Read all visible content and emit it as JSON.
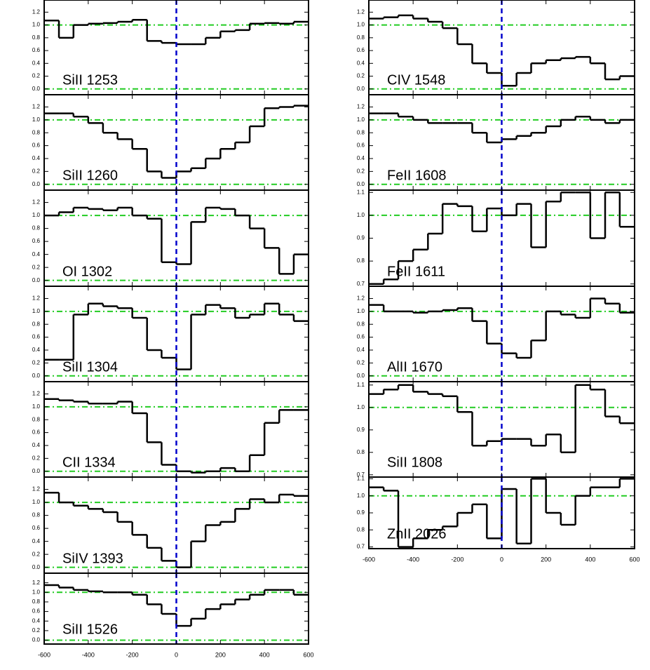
{
  "chart_data": [
    {
      "type": "line",
      "drawstyle": "steps-post",
      "title": "SiII 1253",
      "x": [
        -600,
        -533,
        -467,
        -400,
        -333,
        -267,
        -200,
        -133,
        -67,
        0,
        67,
        133,
        200,
        267,
        333,
        400,
        467,
        533
      ],
      "values": [
        1.07,
        0.8,
        1.0,
        1.02,
        1.03,
        1.05,
        1.08,
        0.75,
        0.72,
        0.7,
        0.7,
        0.8,
        0.9,
        0.92,
        1.02,
        1.03,
        1.02,
        1.05
      ],
      "color": "#000000",
      "xlim": [
        -600,
        600
      ],
      "xticks": [
        -600,
        -400,
        -200,
        0,
        200,
        400,
        600
      ],
      "ylim": [
        -0.09,
        1.39
      ],
      "yticks": [
        {
          "value": 0,
          "label": "0.0"
        },
        0.2,
        0.4,
        0.6,
        0.8,
        {
          "value": 1,
          "label": "1.0"
        },
        1.2
      ],
      "hlines": [
        0,
        1
      ],
      "vline": 0
    },
    {
      "type": "line",
      "drawstyle": "steps-post",
      "title": "SiII 1260",
      "x": [
        -600,
        -533,
        -467,
        -400,
        -333,
        -267,
        -200,
        -133,
        -67,
        0,
        67,
        133,
        200,
        267,
        333,
        400,
        467,
        533
      ],
      "values": [
        1.1,
        1.1,
        1.05,
        0.95,
        0.8,
        0.7,
        0.55,
        0.2,
        0.1,
        0.2,
        0.25,
        0.4,
        0.55,
        0.65,
        0.9,
        1.18,
        1.2,
        1.22
      ],
      "color": "#000000",
      "xlim": [
        -600,
        600
      ],
      "xticks": [
        -600,
        -400,
        -200,
        0,
        200,
        400,
        600
      ],
      "ylim": [
        -0.09,
        1.39
      ],
      "yticks": [
        {
          "value": 0,
          "label": "0.0"
        },
        0.2,
        0.4,
        0.6,
        0.8,
        {
          "value": 1,
          "label": "1.0"
        },
        1.2
      ],
      "hlines": [
        0,
        1
      ],
      "vline": 0
    },
    {
      "type": "line",
      "drawstyle": "steps-post",
      "title": "OI 1302",
      "x": [
        -600,
        -533,
        -467,
        -400,
        -333,
        -267,
        -200,
        -133,
        -67,
        0,
        67,
        133,
        200,
        267,
        333,
        400,
        467,
        533
      ],
      "values": [
        1.0,
        1.05,
        1.12,
        1.1,
        1.08,
        1.12,
        1.0,
        0.95,
        0.28,
        0.25,
        0.9,
        1.12,
        1.1,
        1.0,
        0.8,
        0.5,
        0.1,
        0.4
      ],
      "color": "#000000",
      "xlim": [
        -600,
        600
      ],
      "xticks": [
        -600,
        -400,
        -200,
        0,
        200,
        400,
        600
      ],
      "ylim": [
        -0.09,
        1.39
      ],
      "yticks": [
        {
          "value": 0,
          "label": "0.0"
        },
        0.2,
        0.4,
        0.6,
        0.8,
        {
          "value": 1,
          "label": "1.0"
        },
        1.2
      ],
      "hlines": [
        0,
        1
      ],
      "vline": 0
    },
    {
      "type": "line",
      "drawstyle": "steps-post",
      "title": "SiII 1304",
      "x": [
        -600,
        -533,
        -467,
        -400,
        -333,
        -267,
        -200,
        -133,
        -67,
        0,
        67,
        133,
        200,
        267,
        333,
        400,
        467,
        533
      ],
      "values": [
        0.25,
        0.25,
        0.95,
        1.12,
        1.08,
        1.05,
        0.9,
        0.4,
        0.28,
        0.1,
        0.95,
        1.1,
        1.05,
        0.9,
        0.95,
        1.12,
        0.95,
        0.85
      ],
      "color": "#000000",
      "xlim": [
        -600,
        600
      ],
      "xticks": [
        -600,
        -400,
        -200,
        0,
        200,
        400,
        600
      ],
      "ylim": [
        -0.09,
        1.39
      ],
      "yticks": [
        {
          "value": 0,
          "label": "0.0"
        },
        0.2,
        0.4,
        0.6,
        0.8,
        {
          "value": 1,
          "label": "1.0"
        },
        1.2
      ],
      "hlines": [
        0,
        1
      ],
      "vline": 0
    },
    {
      "type": "line",
      "drawstyle": "steps-post",
      "title": "CII 1334",
      "x": [
        -600,
        -533,
        -467,
        -400,
        -333,
        -267,
        -200,
        -133,
        -67,
        0,
        67,
        133,
        200,
        267,
        333,
        400,
        467,
        533
      ],
      "values": [
        1.12,
        1.1,
        1.08,
        1.05,
        1.05,
        1.08,
        0.9,
        0.45,
        0.1,
        0.0,
        -0.02,
        0.0,
        0.05,
        0.0,
        0.25,
        0.75,
        0.95,
        0.95
      ],
      "color": "#000000",
      "xlim": [
        -600,
        600
      ],
      "xticks": [
        -600,
        -400,
        -200,
        0,
        200,
        400,
        600
      ],
      "ylim": [
        -0.09,
        1.39
      ],
      "yticks": [
        {
          "value": 0,
          "label": "0.0"
        },
        0.2,
        0.4,
        0.6,
        0.8,
        {
          "value": 1,
          "label": "1.0"
        },
        1.2
      ],
      "hlines": [
        0,
        1
      ],
      "vline": 0
    },
    {
      "type": "line",
      "drawstyle": "steps-post",
      "title": "SiIV 1393",
      "x": [
        -600,
        -533,
        -467,
        -400,
        -333,
        -267,
        -200,
        -133,
        -67,
        0,
        67,
        133,
        200,
        267,
        333,
        400,
        467,
        533
      ],
      "values": [
        1.15,
        1.0,
        0.95,
        0.9,
        0.85,
        0.7,
        0.5,
        0.3,
        0.1,
        0.0,
        0.4,
        0.65,
        0.7,
        0.9,
        1.05,
        1.0,
        1.12,
        1.1
      ],
      "color": "#000000",
      "xlim": [
        -600,
        600
      ],
      "xticks": [
        -600,
        -400,
        -200,
        0,
        200,
        400,
        600
      ],
      "ylim": [
        -0.09,
        1.39
      ],
      "yticks": [
        {
          "value": 0,
          "label": "0.0"
        },
        0.2,
        0.4,
        0.6,
        0.8,
        {
          "value": 1,
          "label": "1.0"
        },
        1.2
      ],
      "hlines": [
        0,
        1
      ],
      "vline": 0
    },
    {
      "type": "line",
      "drawstyle": "steps-post",
      "title": "SiII 1526",
      "x": [
        -600,
        -533,
        -467,
        -400,
        -333,
        -267,
        -200,
        -133,
        -67,
        0,
        67,
        133,
        200,
        267,
        333,
        400,
        467,
        533
      ],
      "values": [
        1.15,
        1.1,
        1.05,
        1.02,
        1.0,
        1.0,
        0.95,
        0.75,
        0.55,
        0.3,
        0.45,
        0.65,
        0.75,
        0.85,
        0.95,
        1.05,
        1.05,
        0.95
      ],
      "color": "#000000",
      "xlim": [
        -600,
        600
      ],
      "xticks": [
        -600,
        -400,
        -200,
        0,
        200,
        400,
        600
      ],
      "ylim": [
        -0.08,
        1.4
      ],
      "yticks": [
        {
          "value": 0,
          "label": "0.0"
        },
        0.2,
        0.4,
        0.6,
        0.8,
        {
          "value": 1,
          "label": "1.0"
        },
        1.2
      ],
      "hlines": [
        0,
        1
      ],
      "vline": 0
    },
    {
      "type": "line",
      "drawstyle": "steps-post",
      "title": "CIV 1548",
      "x": [
        -600,
        -533,
        -467,
        -400,
        -333,
        -267,
        -200,
        -133,
        -67,
        0,
        67,
        133,
        200,
        267,
        333,
        400,
        467,
        533
      ],
      "values": [
        1.1,
        1.12,
        1.15,
        1.1,
        1.05,
        0.95,
        0.7,
        0.4,
        0.25,
        0.05,
        0.25,
        0.4,
        0.45,
        0.48,
        0.5,
        0.4,
        0.15,
        0.2
      ],
      "color": "#000000",
      "xlim": [
        -600,
        600
      ],
      "xticks": [
        -600,
        -400,
        -200,
        0,
        200,
        400,
        600
      ],
      "ylim": [
        -0.09,
        1.39
      ],
      "yticks": [
        {
          "value": 0,
          "label": "0.0"
        },
        0.2,
        0.4,
        0.6,
        0.8,
        {
          "value": 1,
          "label": "1.0"
        },
        1.2
      ],
      "hlines": [
        0,
        1
      ],
      "vline": 0
    },
    {
      "type": "line",
      "drawstyle": "steps-post",
      "title": "FeII 1608",
      "x": [
        -600,
        -533,
        -467,
        -400,
        -333,
        -267,
        -200,
        -133,
        -67,
        0,
        67,
        133,
        200,
        267,
        333,
        400,
        467,
        533
      ],
      "values": [
        1.1,
        1.1,
        1.05,
        1.0,
        0.95,
        0.95,
        0.95,
        0.8,
        0.65,
        0.7,
        0.75,
        0.8,
        0.9,
        1.0,
        1.05,
        1.0,
        0.95,
        1.0
      ],
      "color": "#000000",
      "xlim": [
        -600,
        600
      ],
      "xticks": [
        -600,
        -400,
        -200,
        0,
        200,
        400,
        600
      ],
      "ylim": [
        -0.09,
        1.39
      ],
      "yticks": [
        {
          "value": 0,
          "label": "0.0"
        },
        0.2,
        0.4,
        0.6,
        0.8,
        {
          "value": 1,
          "label": "1.0"
        },
        1.2
      ],
      "hlines": [
        0,
        1
      ],
      "vline": 0
    },
    {
      "type": "line",
      "drawstyle": "steps-post",
      "title": "FeII 1611",
      "x": [
        -600,
        -533,
        -467,
        -400,
        -333,
        -267,
        -200,
        -133,
        -67,
        0,
        67,
        133,
        200,
        267,
        333,
        400,
        467,
        533
      ],
      "values": [
        0.7,
        0.72,
        0.8,
        0.85,
        0.92,
        1.05,
        1.04,
        0.93,
        1.03,
        1.0,
        1.05,
        0.86,
        1.06,
        1.1,
        1.1,
        0.9,
        1.1,
        0.95
      ],
      "color": "#000000",
      "xlim": [
        -600,
        600
      ],
      "xticks": [
        -600,
        -400,
        -200,
        0,
        200,
        400,
        600
      ],
      "ylim": [
        0.69,
        1.11
      ],
      "yticks": [
        0.7,
        0.8,
        0.9,
        {
          "value": 1,
          "label": "1.0"
        },
        1.1
      ],
      "hlines": [
        1
      ],
      "vline": 0
    },
    {
      "type": "line",
      "drawstyle": "steps-post",
      "title": "AlII 1670",
      "x": [
        -600,
        -533,
        -467,
        -400,
        -333,
        -267,
        -200,
        -133,
        -67,
        0,
        67,
        133,
        200,
        267,
        333,
        400,
        467,
        533
      ],
      "values": [
        1.1,
        1.0,
        1.0,
        0.98,
        1.0,
        1.02,
        1.05,
        0.85,
        0.5,
        0.35,
        0.28,
        0.55,
        1.0,
        0.95,
        0.9,
        1.2,
        1.12,
        0.98
      ],
      "color": "#000000",
      "xlim": [
        -600,
        600
      ],
      "xticks": [
        -600,
        -400,
        -200,
        0,
        200,
        400,
        600
      ],
      "ylim": [
        -0.09,
        1.39
      ],
      "yticks": [
        {
          "value": 0,
          "label": "0.0"
        },
        0.2,
        0.4,
        0.6,
        0.8,
        {
          "value": 1,
          "label": "1.0"
        },
        1.2
      ],
      "hlines": [
        0,
        1
      ],
      "vline": 0
    },
    {
      "type": "line",
      "drawstyle": "steps-post",
      "title": "SiII 1808",
      "x": [
        -600,
        -533,
        -467,
        -400,
        -333,
        -267,
        -200,
        -133,
        -67,
        0,
        67,
        133,
        200,
        267,
        333,
        400,
        467,
        533
      ],
      "values": [
        1.06,
        1.08,
        1.1,
        1.07,
        1.06,
        1.05,
        0.98,
        0.83,
        0.85,
        0.86,
        0.86,
        0.83,
        0.88,
        0.8,
        1.1,
        1.08,
        0.96,
        0.93
      ],
      "color": "#000000",
      "xlim": [
        -600,
        600
      ],
      "xticks": [
        -600,
        -400,
        -200,
        0,
        200,
        400,
        600
      ],
      "ylim": [
        0.69,
        1.115
      ],
      "yticks": [
        0.7,
        0.8,
        0.9,
        {
          "value": 1,
          "label": "1.0"
        },
        1.1
      ],
      "hlines": [
        1
      ],
      "vline": 0
    },
    {
      "type": "line",
      "drawstyle": "steps-post",
      "title": "ZnII 2026",
      "x": [
        -600,
        -533,
        -467,
        -400,
        -333,
        -267,
        -200,
        -133,
        -67,
        0,
        67,
        133,
        200,
        267,
        333,
        400,
        467,
        533
      ],
      "values": [
        1.05,
        1.03,
        0.7,
        0.75,
        0.8,
        0.82,
        0.9,
        0.95,
        0.75,
        1.04,
        0.72,
        1.1,
        0.9,
        0.83,
        1.0,
        1.05,
        1.05,
        1.1
      ],
      "color": "#000000",
      "xlim": [
        -600,
        600
      ],
      "xticks": [
        -600,
        -400,
        -200,
        0,
        200,
        400,
        600
      ],
      "ylim": [
        0.69,
        1.11
      ],
      "yticks": [
        0.7,
        0.8,
        0.9,
        {
          "value": 1,
          "label": "1.0"
        },
        1.1
      ],
      "hlines": [
        1
      ],
      "vline": 0
    }
  ]
}
